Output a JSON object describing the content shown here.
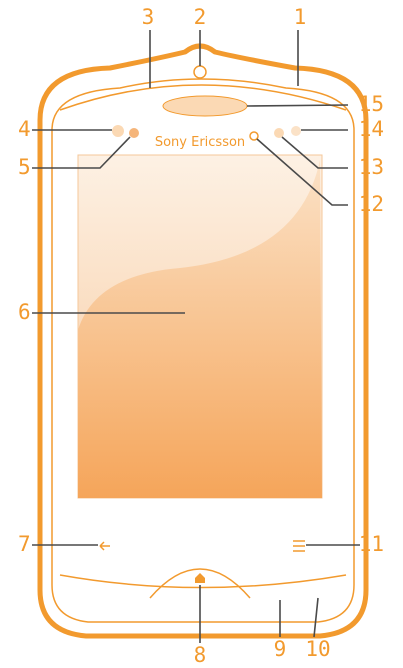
{
  "brand": "Sony Ericsson",
  "callouts": [
    {
      "label": "1"
    },
    {
      "label": "2"
    },
    {
      "label": "3"
    },
    {
      "label": "4"
    },
    {
      "label": "5"
    },
    {
      "label": "6"
    },
    {
      "label": "7"
    },
    {
      "label": "8"
    },
    {
      "label": "9"
    },
    {
      "label": "10"
    },
    {
      "label": "11"
    },
    {
      "label": "12"
    },
    {
      "label": "13"
    },
    {
      "label": "14"
    },
    {
      "label": "15"
    }
  ]
}
